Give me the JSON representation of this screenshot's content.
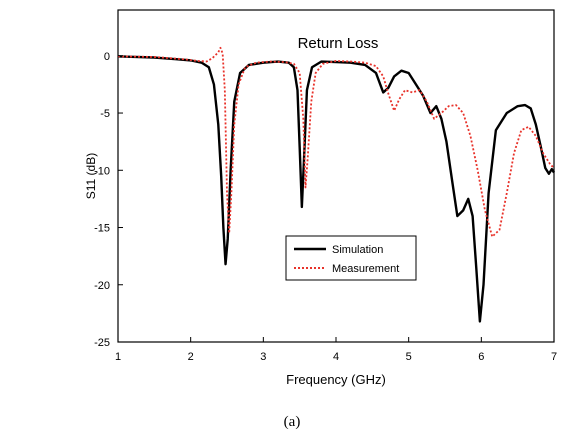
{
  "caption": "(a)",
  "chart_data": {
    "type": "line",
    "title": "Return Loss",
    "xlabel": "Frequency (GHz)",
    "ylabel": "S11 (dB)",
    "xlim": [
      1,
      7
    ],
    "ylim": [
      -25,
      4
    ],
    "xticks": [
      1,
      2,
      3,
      4,
      5,
      6,
      7
    ],
    "yticks": [
      0,
      -5,
      -10,
      -15,
      -20,
      -25
    ],
    "grid": false,
    "legend_position": "center-right",
    "series": [
      {
        "name": "Simulation",
        "color": "#000000",
        "style": "solid",
        "points": [
          [
            1.0,
            -0.05
          ],
          [
            1.5,
            -0.15
          ],
          [
            1.8,
            -0.3
          ],
          [
            2.0,
            -0.4
          ],
          [
            2.15,
            -0.6
          ],
          [
            2.25,
            -1.0
          ],
          [
            2.32,
            -2.5
          ],
          [
            2.38,
            -6.0
          ],
          [
            2.42,
            -10.5
          ],
          [
            2.45,
            -15.0
          ],
          [
            2.48,
            -18.2
          ],
          [
            2.51,
            -16.0
          ],
          [
            2.55,
            -10.0
          ],
          [
            2.6,
            -4.0
          ],
          [
            2.68,
            -1.5
          ],
          [
            2.8,
            -0.8
          ],
          [
            3.0,
            -0.6
          ],
          [
            3.2,
            -0.5
          ],
          [
            3.35,
            -0.6
          ],
          [
            3.42,
            -1.0
          ],
          [
            3.47,
            -3.0
          ],
          [
            3.5,
            -8.0
          ],
          [
            3.53,
            -13.2
          ],
          [
            3.56,
            -9.0
          ],
          [
            3.6,
            -3.0
          ],
          [
            3.67,
            -1.0
          ],
          [
            3.8,
            -0.5
          ],
          [
            4.0,
            -0.55
          ],
          [
            4.2,
            -0.6
          ],
          [
            4.4,
            -0.8
          ],
          [
            4.55,
            -1.5
          ],
          [
            4.65,
            -3.2
          ],
          [
            4.72,
            -2.8
          ],
          [
            4.8,
            -1.8
          ],
          [
            4.9,
            -1.3
          ],
          [
            5.0,
            -1.5
          ],
          [
            5.1,
            -2.5
          ],
          [
            5.2,
            -3.5
          ],
          [
            5.3,
            -5.0
          ],
          [
            5.38,
            -4.4
          ],
          [
            5.45,
            -5.5
          ],
          [
            5.52,
            -7.5
          ],
          [
            5.6,
            -11.0
          ],
          [
            5.67,
            -14.0
          ],
          [
            5.75,
            -13.5
          ],
          [
            5.82,
            -12.5
          ],
          [
            5.88,
            -14.0
          ],
          [
            5.93,
            -18.5
          ],
          [
            5.98,
            -23.2
          ],
          [
            6.03,
            -20.0
          ],
          [
            6.1,
            -12.0
          ],
          [
            6.2,
            -6.5
          ],
          [
            6.35,
            -5.0
          ],
          [
            6.5,
            -4.4
          ],
          [
            6.6,
            -4.3
          ],
          [
            6.68,
            -4.6
          ],
          [
            6.75,
            -6.0
          ],
          [
            6.82,
            -8.0
          ],
          [
            6.88,
            -9.8
          ],
          [
            6.93,
            -10.3
          ],
          [
            6.97,
            -9.9
          ],
          [
            7.0,
            -10.2
          ]
        ]
      },
      {
        "name": "Measurement",
        "color": "#e8322a",
        "style": "dotted",
        "points": [
          [
            1.0,
            -0.05
          ],
          [
            1.5,
            -0.1
          ],
          [
            1.9,
            -0.3
          ],
          [
            2.1,
            -0.45
          ],
          [
            2.22,
            -0.5
          ],
          [
            2.3,
            -0.2
          ],
          [
            2.38,
            0.3
          ],
          [
            2.41,
            0.7
          ],
          [
            2.44,
            0.2
          ],
          [
            2.47,
            -3.0
          ],
          [
            2.5,
            -12.0
          ],
          [
            2.53,
            -15.5
          ],
          [
            2.56,
            -12.0
          ],
          [
            2.6,
            -6.0
          ],
          [
            2.66,
            -2.5
          ],
          [
            2.75,
            -1.0
          ],
          [
            2.9,
            -0.6
          ],
          [
            3.1,
            -0.5
          ],
          [
            3.3,
            -0.55
          ],
          [
            3.42,
            -0.7
          ],
          [
            3.5,
            -1.5
          ],
          [
            3.55,
            -5.5
          ],
          [
            3.58,
            -11.5
          ],
          [
            3.61,
            -9.0
          ],
          [
            3.66,
            -4.0
          ],
          [
            3.72,
            -1.5
          ],
          [
            3.82,
            -0.7
          ],
          [
            4.0,
            -0.45
          ],
          [
            4.2,
            -0.5
          ],
          [
            4.4,
            -0.6
          ],
          [
            4.55,
            -0.9
          ],
          [
            4.65,
            -1.8
          ],
          [
            4.72,
            -3.3
          ],
          [
            4.8,
            -4.8
          ],
          [
            4.87,
            -3.8
          ],
          [
            4.95,
            -3.0
          ],
          [
            5.05,
            -3.2
          ],
          [
            5.15,
            -3.0
          ],
          [
            5.25,
            -4.0
          ],
          [
            5.35,
            -5.5
          ],
          [
            5.45,
            -5.0
          ],
          [
            5.55,
            -4.4
          ],
          [
            5.65,
            -4.3
          ],
          [
            5.75,
            -5.0
          ],
          [
            5.85,
            -7.0
          ],
          [
            5.95,
            -10.0
          ],
          [
            6.05,
            -13.5
          ],
          [
            6.15,
            -15.8
          ],
          [
            6.25,
            -15.2
          ],
          [
            6.35,
            -12.0
          ],
          [
            6.45,
            -8.5
          ],
          [
            6.55,
            -6.5
          ],
          [
            6.65,
            -6.2
          ],
          [
            6.75,
            -7.0
          ],
          [
            6.85,
            -8.5
          ],
          [
            6.95,
            -9.5
          ],
          [
            7.0,
            -9.8
          ]
        ]
      }
    ]
  }
}
